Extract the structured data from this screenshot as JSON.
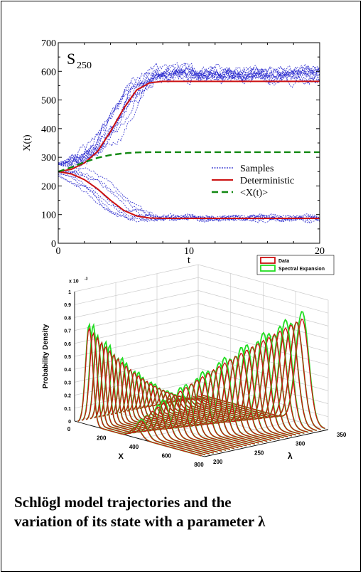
{
  "chart_data": [
    {
      "type": "line",
      "panel_label": "S",
      "panel_label_sub": "250",
      "xlabel": "t",
      "ylabel": "X(t)",
      "xlim": [
        0,
        20
      ],
      "ylim": [
        0,
        700
      ],
      "xticks": [
        0,
        10,
        20
      ],
      "yticks": [
        0,
        100,
        200,
        300,
        400,
        500,
        600,
        700
      ],
      "legend_position": "center-right",
      "colors": {
        "samples": "#2222cc",
        "deterministic": "#cc1111",
        "mean": "#118811"
      },
      "series": [
        {
          "name": "Samples",
          "style": "dotted",
          "color": "#2222cc",
          "count": 20,
          "start": 250,
          "upper_level": 590,
          "lower_level": 90
        },
        {
          "name": "Deterministic",
          "style": "solid",
          "color": "#cc1111",
          "branches": [
            {
              "t": [
                0,
                1,
                2,
                3,
                4,
                5,
                6,
                7,
                8,
                10,
                20
              ],
              "x": [
                250,
                258,
                280,
                320,
                390,
                470,
                535,
                560,
                565,
                565,
                565
              ]
            },
            {
              "t": [
                0,
                1,
                2,
                3,
                4,
                5,
                6,
                7,
                8,
                10,
                20
              ],
              "x": [
                250,
                242,
                222,
                190,
                150,
                115,
                95,
                88,
                87,
                87,
                87
              ]
            }
          ]
        },
        {
          "name": "<X(t)>",
          "style": "dashed",
          "color": "#118811",
          "t": [
            0,
            1,
            2,
            3,
            4,
            5,
            6,
            7,
            8,
            10,
            20
          ],
          "x": [
            250,
            265,
            283,
            298,
            308,
            314,
            317,
            318,
            318,
            318,
            318
          ]
        }
      ]
    },
    {
      "type": "line3d",
      "zlabel": "Probability Density",
      "z_multiplier": "x 10",
      "z_multiplier_exp": "-3",
      "xlabel": "X",
      "ylabel": "λ",
      "xticks": [
        0,
        200,
        400,
        600,
        800
      ],
      "yticks": [
        200,
        250,
        300,
        350
      ],
      "zticks": [
        0,
        0.1,
        0.2,
        0.3,
        0.4,
        0.5,
        0.6,
        0.7,
        0.8,
        0.9,
        1
      ],
      "xlim": [
        0,
        800
      ],
      "ylim": [
        200,
        350
      ],
      "zlim": [
        0,
        1
      ],
      "legend_position": "top-right",
      "series": [
        {
          "name": "Data",
          "color": "#cc1111"
        },
        {
          "name": "Spectral Expansion",
          "color": "#22dd22"
        }
      ],
      "lambda_values": [
        200,
        205,
        210,
        215,
        220,
        225,
        230,
        235,
        240,
        245,
        250,
        255,
        260,
        265,
        270,
        275,
        280,
        285,
        290,
        295,
        300,
        305,
        310,
        315,
        320,
        325,
        330,
        335,
        340,
        345,
        350
      ],
      "low_peak_x": 90,
      "high_peak_x_range": [
        380,
        640
      ]
    }
  ],
  "caption": {
    "line1": "Schlögl model trajectories and the",
    "line2": "variation of its state with a parameter λ"
  }
}
